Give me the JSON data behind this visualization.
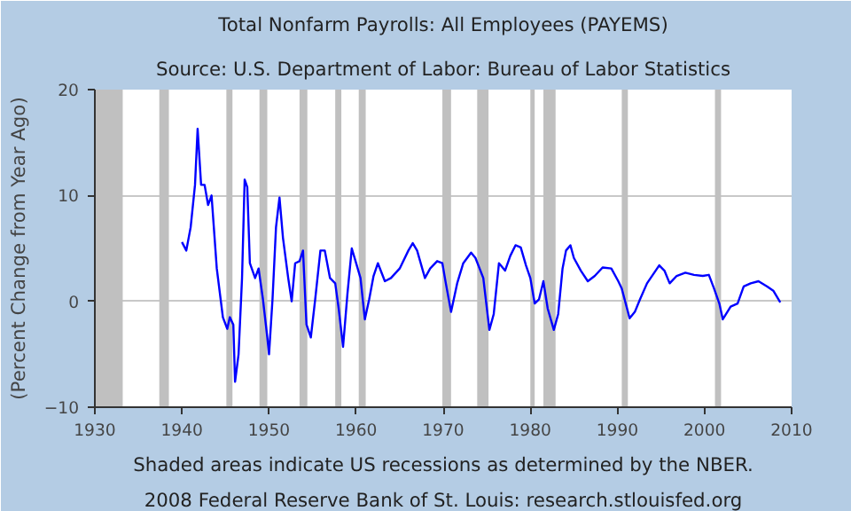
{
  "chart_data": {
    "type": "line",
    "title": "Total Nonfarm Payrolls: All Employees (PAYEMS)",
    "subtitle": "Source: U.S. Department of Labor: Bureau of Labor Statistics",
    "ylabel": "(Percent Change from Year Ago)",
    "annotations": [
      "Shaded areas indicate US recessions as determined by the NBER.",
      "2008 Federal Reserve Bank of St. Louis: research.stlouisfed.org"
    ],
    "xlim": [
      1930,
      2010
    ],
    "xticks": [
      1930,
      1940,
      1950,
      1960,
      1970,
      1980,
      1990,
      2000,
      2010
    ],
    "ylim": [
      -10,
      20
    ],
    "yticks": [
      -10,
      0,
      10,
      20
    ],
    "grid": "y",
    "series": [
      {
        "color": "#0000ff",
        "x": [
          1940.0,
          1940.5,
          1941.0,
          1941.5,
          1941.8,
          1942.2,
          1942.6,
          1943.0,
          1943.4,
          1944.0,
          1944.7,
          1945.2,
          1945.5,
          1945.9,
          1946.1,
          1946.5,
          1946.9,
          1947.2,
          1947.5,
          1947.8,
          1948.4,
          1948.8,
          1949.3,
          1949.8,
          1950.0,
          1950.4,
          1950.8,
          1951.2,
          1951.6,
          1952.2,
          1952.6,
          1953.0,
          1953.5,
          1953.9,
          1954.3,
          1954.8,
          1955.3,
          1955.9,
          1956.4,
          1957.0,
          1957.6,
          1958.0,
          1958.5,
          1959.0,
          1959.5,
          1960.0,
          1960.5,
          1961.0,
          1961.5,
          1962.0,
          1962.5,
          1963.3,
          1964.0,
          1965.0,
          1966.0,
          1966.5,
          1967.0,
          1967.9,
          1968.5,
          1969.3,
          1969.9,
          1970.3,
          1970.9,
          1971.6,
          1972.3,
          1973.2,
          1973.7,
          1974.6,
          1975.3,
          1975.8,
          1976.4,
          1976.6,
          1977.1,
          1977.7,
          1978.3,
          1978.9,
          1979.5,
          1980.0,
          1980.5,
          1981.0,
          1981.5,
          1982.0,
          1982.7,
          1983.2,
          1983.7,
          1984.1,
          1984.6,
          1985.0,
          1985.8,
          1986.6,
          1987.4,
          1988.3,
          1989.3,
          1990.1,
          1990.5,
          1991.4,
          1992.0,
          1992.6,
          1993.4,
          1994.8,
          1995.4,
          1996.0,
          1996.8,
          1997.8,
          1998.8,
          1999.8,
          2000.5,
          2001.1,
          2001.7,
          2002.1,
          2003.0,
          2003.8,
          2004.5,
          2005.3,
          2006.2,
          2007.2,
          2007.9,
          2008.7
        ],
        "values": [
          5.6,
          4.8,
          7.0,
          11.0,
          16.3,
          11.0,
          11.0,
          9.1,
          10.0,
          3.1,
          -1.5,
          -2.6,
          -1.5,
          -2.2,
          -7.6,
          -5.0,
          2.2,
          11.5,
          10.8,
          3.6,
          2.2,
          3.1,
          0.2,
          -3.4,
          -5.0,
          0.2,
          7.0,
          9.8,
          6.0,
          2.2,
          0.0,
          3.6,
          3.8,
          4.8,
          -2.2,
          -3.4,
          0.2,
          4.8,
          4.8,
          2.2,
          1.7,
          -0.7,
          -4.3,
          0.7,
          5.0,
          3.6,
          2.2,
          -1.7,
          0.2,
          2.4,
          3.6,
          1.9,
          2.2,
          3.1,
          4.8,
          5.5,
          4.8,
          2.2,
          3.1,
          3.8,
          3.6,
          1.7,
          -1.0,
          1.7,
          3.6,
          4.6,
          4.1,
          2.2,
          -2.7,
          -1.2,
          3.6,
          3.4,
          2.9,
          4.3,
          5.3,
          5.1,
          3.4,
          2.2,
          -0.2,
          0.2,
          1.9,
          -0.7,
          -2.7,
          -1.2,
          3.1,
          4.8,
          5.3,
          4.1,
          2.9,
          1.9,
          2.4,
          3.2,
          3.1,
          1.9,
          1.2,
          -1.6,
          -1.0,
          0.2,
          1.7,
          3.4,
          2.9,
          1.7,
          2.4,
          2.7,
          2.5,
          2.4,
          2.5,
          1.2,
          -0.2,
          -1.7,
          -0.5,
          -0.2,
          1.4,
          1.7,
          1.9,
          1.4,
          1.0,
          -0.1
        ]
      }
    ],
    "bands": [
      {
        "axis": "x",
        "from": 1930,
        "to": 1933.2,
        "color": "#c0c0c0"
      },
      {
        "axis": "x",
        "from": 1937.4,
        "to": 1938.5,
        "color": "#c0c0c0"
      },
      {
        "axis": "x",
        "from": 1945.1,
        "to": 1945.8,
        "color": "#c0c0c0"
      },
      {
        "axis": "x",
        "from": 1948.9,
        "to": 1949.8,
        "color": "#c0c0c0"
      },
      {
        "axis": "x",
        "from": 1953.5,
        "to": 1954.4,
        "color": "#c0c0c0"
      },
      {
        "axis": "x",
        "from": 1957.6,
        "to": 1958.3,
        "color": "#c0c0c0"
      },
      {
        "axis": "x",
        "from": 1960.3,
        "to": 1961.1,
        "color": "#c0c0c0"
      },
      {
        "axis": "x",
        "from": 1969.9,
        "to": 1970.9,
        "color": "#c0c0c0"
      },
      {
        "axis": "x",
        "from": 1973.9,
        "to": 1975.2,
        "color": "#c0c0c0"
      },
      {
        "axis": "x",
        "from": 1980.0,
        "to": 1980.5,
        "color": "#c0c0c0"
      },
      {
        "axis": "x",
        "from": 1981.5,
        "to": 1982.9,
        "color": "#c0c0c0"
      },
      {
        "axis": "x",
        "from": 1990.5,
        "to": 1991.2,
        "color": "#c0c0c0"
      },
      {
        "axis": "x",
        "from": 2001.2,
        "to": 2001.9,
        "color": "#c0c0c0"
      }
    ]
  }
}
